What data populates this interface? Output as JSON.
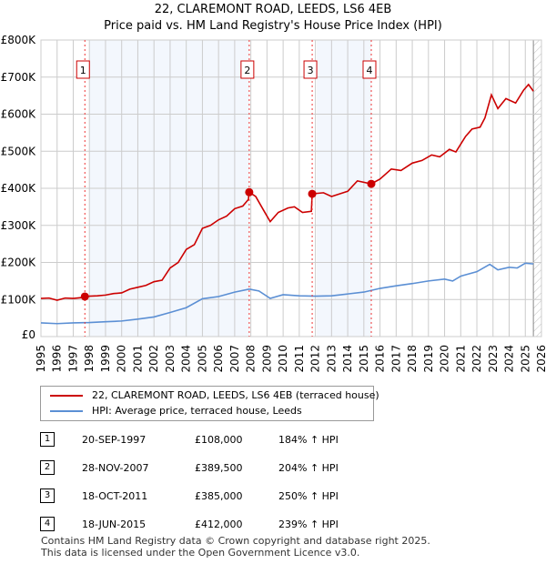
{
  "chart_data": {
    "type": "line",
    "title": "22, CLAREMONT ROAD, LEEDS, LS6 4EB",
    "subtitle": "Price paid vs. HM Land Registry's House Price Index (HPI)",
    "xlim": [
      1995,
      2026
    ],
    "ylim": [
      0,
      800000
    ],
    "x_ticks": [
      "1995",
      "1996",
      "1997",
      "1998",
      "1999",
      "2000",
      "2001",
      "2002",
      "2003",
      "2004",
      "2005",
      "2006",
      "2007",
      "2008",
      "2009",
      "2010",
      "2011",
      "2012",
      "2013",
      "2014",
      "2015",
      "2016",
      "2017",
      "2018",
      "2019",
      "2020",
      "2021",
      "2022",
      "2023",
      "2024",
      "2025",
      "2026"
    ],
    "y_ticks": [
      {
        "v": 0,
        "l": "£0"
      },
      {
        "v": 100000,
        "l": "£100K"
      },
      {
        "v": 200000,
        "l": "£200K"
      },
      {
        "v": 300000,
        "l": "£300K"
      },
      {
        "v": 400000,
        "l": "£400K"
      },
      {
        "v": 500000,
        "l": "£500K"
      },
      {
        "v": 600000,
        "l": "£600K"
      },
      {
        "v": 700000,
        "l": "£700K"
      },
      {
        "v": 800000,
        "l": "£800K"
      }
    ],
    "grid": true,
    "series": [
      {
        "name": "22, CLAREMONT ROAD, LEEDS, LS6 4EB (terraced house)",
        "color": "#cc0000",
        "x": [
          1995,
          1995.5,
          1996,
          1996.5,
          1997,
          1997.5,
          1997.72,
          1998,
          1998.5,
          1999,
          1999.5,
          2000,
          2000.5,
          2001,
          2001.5,
          2002,
          2002.5,
          2003,
          2003.5,
          2004,
          2004.5,
          2005,
          2005.5,
          2006,
          2006.5,
          2007,
          2007.5,
          2007.85,
          2007.9,
          2008.3,
          2008.8,
          2009.2,
          2009.7,
          2010.3,
          2010.7,
          2011.2,
          2011.75,
          2011.8,
          2012.5,
          2013,
          2013.5,
          2014,
          2014.6,
          2015.46,
          2016,
          2016.7,
          2017.3,
          2018,
          2018.6,
          2019.2,
          2019.7,
          2020.3,
          2020.7,
          2021.3,
          2021.7,
          2022.2,
          2022.5,
          2022.9,
          2023.3,
          2023.8,
          2024.4,
          2024.9,
          2025.2,
          2025.5
        ],
        "y": [
          103000,
          104000,
          98000,
          104000,
          103000,
          105000,
          108000,
          109000,
          110000,
          112000,
          116000,
          118000,
          128000,
          133000,
          138000,
          148000,
          152000,
          185000,
          200000,
          235000,
          248000,
          292000,
          300000,
          315000,
          325000,
          345000,
          352000,
          370000,
          389500,
          378000,
          340000,
          310000,
          335000,
          347000,
          350000,
          335000,
          338000,
          385000,
          388000,
          378000,
          385000,
          392000,
          420000,
          412000,
          425000,
          452000,
          448000,
          468000,
          475000,
          490000,
          485000,
          505000,
          498000,
          540000,
          560000,
          565000,
          590000,
          652000,
          615000,
          642000,
          630000,
          665000,
          680000,
          662000
        ]
      },
      {
        "name": "HPI: Average price, terraced house, Leeds",
        "color": "#5b8fd4",
        "x": [
          1995,
          1996,
          1997,
          1998,
          1999,
          2000,
          2001,
          2002,
          2003,
          2004,
          2005,
          2006,
          2007,
          2007.9,
          2008.5,
          2009.2,
          2010,
          2011,
          2012,
          2013,
          2014,
          2015,
          2016,
          2017,
          2018,
          2019,
          2020,
          2020.5,
          2021,
          2022,
          2022.8,
          2023.3,
          2024,
          2024.5,
          2025,
          2025.5
        ],
        "y": [
          37000,
          35000,
          37000,
          38000,
          40000,
          42000,
          47000,
          53000,
          65000,
          78000,
          102000,
          108000,
          120000,
          128000,
          123000,
          103000,
          113000,
          110000,
          109000,
          110000,
          115000,
          120000,
          130000,
          137000,
          143000,
          150000,
          155000,
          150000,
          163000,
          175000,
          195000,
          180000,
          187000,
          185000,
          198000,
          196000
        ]
      }
    ],
    "sales": [
      {
        "n": "1",
        "x": 1997.72,
        "y": 108000,
        "date": "20-SEP-1997",
        "price": "£108,000",
        "hpi": "184% ↑ HPI"
      },
      {
        "n": "2",
        "x": 2007.9,
        "y": 389500,
        "date": "28-NOV-2007",
        "price": "£389,500",
        "hpi": "204% ↑ HPI"
      },
      {
        "n": "3",
        "x": 2011.8,
        "y": 385000,
        "date": "18-OCT-2011",
        "price": "£385,000",
        "hpi": "250% ↑ HPI"
      },
      {
        "n": "4",
        "x": 2015.46,
        "y": 412000,
        "date": "18-JUN-2015",
        "price": "£412,000",
        "hpi": "239% ↑ HPI"
      }
    ],
    "legend": "below"
  },
  "footer": [
    "Contains HM Land Registry data © Crown copyright and database right 2025.",
    "This data is licensed under the Open Government Licence v3.0."
  ]
}
